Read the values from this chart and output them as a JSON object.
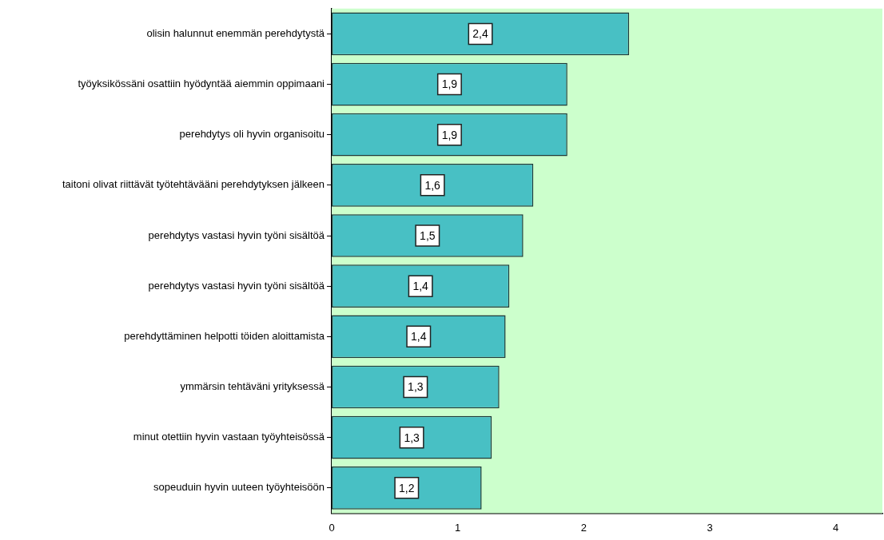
{
  "chart_data": {
    "type": "bar",
    "orientation": "horizontal",
    "categories": [
      "olisin halunnut enemmän perehdytystä",
      "työyksikössäni osattiin hyödyntää aiemmin oppimaani",
      "perehdytys oli hyvin organisoitu",
      "taitoni olivat riittävät työtehtävääni perehdytyksen jälkeen",
      "perehdytys vastasi hyvin työni sisältöä",
      "perehdytys vastasi hyvin työni sisältöä",
      "perehdyttäminen helpotti töiden aloittamista",
      "ymmärsin tehtäväni yrityksessä",
      "minut otettiin hyvin vastaan työyhteisössä",
      "sopeuduin hyvin uuteen työyhteisöön"
    ],
    "values": [
      2.36,
      1.87,
      1.87,
      1.6,
      1.52,
      1.41,
      1.38,
      1.33,
      1.27,
      1.19
    ],
    "value_labels": [
      "2,4",
      "1,9",
      "1,9",
      "1,6",
      "1,5",
      "1,4",
      "1,4",
      "1,3",
      "1,3",
      "1,2"
    ],
    "color": "#48c0c4",
    "xlim": [
      0,
      4.37
    ],
    "xticks": [
      0,
      1,
      2,
      3,
      4
    ],
    "grid": false,
    "legend": false
  }
}
